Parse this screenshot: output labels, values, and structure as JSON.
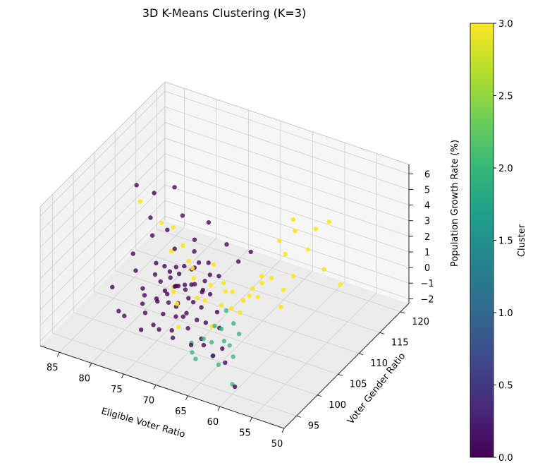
{
  "chart_data": {
    "type": "scatter",
    "projection": "3d",
    "title": "3D K-Means Clustering (K=3)",
    "xlabel": "Eligible Voter Ratio",
    "ylabel": "Voter Gender Ratio",
    "zlabel": "Population Growth Rate (%)",
    "xlim": [
      50,
      88
    ],
    "ylim": [
      92,
      122
    ],
    "zlim": [
      -2.3,
      6.6
    ],
    "xticks": [
      50,
      55,
      60,
      65,
      70,
      75,
      80,
      85
    ],
    "yticks": [
      95,
      100,
      105,
      110,
      115,
      120
    ],
    "zticks": [
      -2,
      -1,
      0,
      1,
      2,
      3,
      4,
      5,
      6
    ],
    "grid": true,
    "colormap": "viridis",
    "colorbar": {
      "label": "Cluster",
      "range": [
        0.0,
        3.0
      ],
      "ticks": [
        "0.0",
        "0.5",
        "1.0",
        "1.5",
        "2.0",
        "2.5",
        "3.0"
      ],
      "stops": [
        "#440154",
        "#482878",
        "#3e4989",
        "#31688e",
        "#26828e",
        "#1f9e89",
        "#35b779",
        "#6ece58",
        "#b5de2b",
        "#fde725"
      ]
    },
    "series": [
      {
        "cluster": 0,
        "color": "#440154",
        "points": [
          [
            73.0,
            104.5,
            -0.5
          ],
          [
            74.2,
            103.8,
            -0.8
          ],
          [
            75.6,
            105.2,
            -0.3
          ],
          [
            72.4,
            103.1,
            -1.0
          ],
          [
            76.8,
            104.7,
            -0.6
          ],
          [
            71.6,
            105.6,
            -0.2
          ],
          [
            74.8,
            106.4,
            -0.4
          ],
          [
            73.6,
            102.4,
            -1.2
          ],
          [
            77.4,
            103.6,
            -0.9
          ],
          [
            70.8,
            104.2,
            -0.7
          ],
          [
            75.2,
            101.8,
            -1.1
          ],
          [
            72.0,
            106.9,
            0.1
          ],
          [
            76.2,
            107.2,
            -0.1
          ],
          [
            74.4,
            108.1,
            0.3
          ],
          [
            78.2,
            105.8,
            -0.5
          ],
          [
            69.6,
            103.4,
            -1.3
          ],
          [
            71.2,
            101.6,
            -1.4
          ],
          [
            73.2,
            100.8,
            -1.6
          ],
          [
            75.8,
            100.4,
            -1.5
          ],
          [
            77.6,
            101.2,
            -1.2
          ],
          [
            79.0,
            103.2,
            -0.8
          ],
          [
            78.6,
            107.4,
            0.0
          ],
          [
            72.8,
            109.0,
            0.6
          ],
          [
            75.4,
            109.6,
            0.8
          ],
          [
            70.4,
            107.8,
            0.4
          ],
          [
            73.8,
            105.0,
            -0.2
          ],
          [
            74.6,
            104.0,
            0.2
          ],
          [
            72.6,
            104.6,
            0.4
          ],
          [
            76.4,
            105.4,
            0.1
          ],
          [
            71.8,
            103.8,
            -0.4
          ],
          [
            74.0,
            106.8,
            0.6
          ],
          [
            77.0,
            106.2,
            0.2
          ],
          [
            73.4,
            107.6,
            0.9
          ],
          [
            75.0,
            102.8,
            -0.6
          ],
          [
            70.2,
            105.4,
            -0.1
          ],
          [
            69.0,
            101.4,
            -1.7
          ],
          [
            80.2,
            104.6,
            -0.9
          ],
          [
            81.4,
            108.8,
            1.2
          ],
          [
            82.6,
            110.2,
            1.8
          ],
          [
            84.8,
            104.4,
            -1.4
          ],
          [
            82.0,
            101.6,
            -1.8
          ],
          [
            66.0,
            99.6,
            -1.9
          ],
          [
            63.6,
            98.8,
            -1.8
          ],
          [
            65.2,
            100.6,
            -1.6
          ],
          [
            67.6,
            99.8,
            -1.5
          ],
          [
            60.4,
            96.2,
            -2.2
          ],
          [
            78.4,
            111.4,
            2.2
          ],
          [
            80.8,
            113.2,
            3.2
          ],
          [
            83.6,
            112.6,
            2.6
          ],
          [
            79.6,
            109.6,
            1.6
          ],
          [
            76.0,
            110.6,
            1.2
          ],
          [
            86.2,
            112.4,
            2.8
          ],
          [
            68.0,
            108.8,
            1.4
          ],
          [
            66.6,
            109.6,
            2.0
          ],
          [
            71.0,
            110.6,
            1.6
          ],
          [
            74.2,
            111.2,
            2.4
          ],
          [
            77.8,
            108.6,
            0.9
          ],
          [
            79.4,
            106.6,
            0.3
          ],
          [
            72.2,
            102.0,
            -0.9
          ],
          [
            70.6,
            102.8,
            -1.1
          ],
          [
            68.6,
            104.6,
            -0.8
          ],
          [
            75.6,
            103.4,
            -0.3
          ],
          [
            73.0,
            106.0,
            0.0
          ],
          [
            76.6,
            102.6,
            -0.7
          ],
          [
            71.4,
            107.2,
            0.5
          ],
          [
            78.8,
            102.4,
            -1.1
          ],
          [
            74.8,
            100.2,
            -1.6
          ],
          [
            72.4,
            99.8,
            -1.7
          ],
          [
            77.2,
            99.6,
            -1.8
          ],
          [
            80.6,
            100.8,
            -1.7
          ],
          [
            69.8,
            100.2,
            -1.9
          ],
          [
            83.0,
            106.6,
            0.4
          ],
          [
            81.8,
            105.4,
            -0.2
          ],
          [
            67.2,
            103.0,
            -1.2
          ],
          [
            73.6,
            103.0,
            0.6
          ],
          [
            75.9,
            106.0,
            0.7
          ],
          [
            71.0,
            104.9,
            0.2
          ],
          [
            78.0,
            104.2,
            0.4
          ],
          [
            74.5,
            105.8,
            1.0
          ],
          [
            72.9,
            101.4,
            -0.2
          ]
        ]
      },
      {
        "cluster": 2,
        "color": "#35b779",
        "points": [
          [
            64.0,
            100.5,
            -1.2
          ],
          [
            65.5,
            101.5,
            -1.4
          ],
          [
            66.5,
            102.4,
            -1.0
          ],
          [
            63.0,
            99.8,
            -1.6
          ],
          [
            67.0,
            100.8,
            -1.5
          ],
          [
            65.0,
            103.0,
            -0.6
          ],
          [
            68.5,
            101.2,
            -1.6
          ],
          [
            66.0,
            99.5,
            -1.9
          ],
          [
            64.5,
            98.6,
            -2.0
          ],
          [
            67.8,
            102.8,
            -1.1
          ],
          [
            69.0,
            99.2,
            -2.0
          ],
          [
            63.5,
            102.0,
            -0.8
          ],
          [
            70.0,
            100.6,
            -1.9
          ],
          [
            66.8,
            104.0,
            -0.3
          ],
          [
            68.2,
            98.8,
            -2.2
          ],
          [
            61.0,
            96.5,
            -2.2
          ]
        ]
      },
      {
        "cluster": 3,
        "color": "#fde725",
        "points": [
          [
            52.0,
            108.6,
            2.2
          ],
          [
            53.5,
            107.0,
            3.4
          ],
          [
            55.5,
            106.2,
            4.6
          ],
          [
            54.8,
            110.2,
            5.4
          ],
          [
            56.6,
            109.8,
            4.8
          ],
          [
            57.0,
            105.0,
            3.0
          ],
          [
            58.8,
            108.2,
            4.8
          ],
          [
            58.0,
            104.2,
            2.2
          ],
          [
            59.4,
            106.8,
            3.6
          ],
          [
            60.8,
            105.6,
            2.2
          ],
          [
            61.6,
            103.6,
            1.4
          ],
          [
            62.4,
            105.8,
            1.6
          ],
          [
            63.2,
            104.8,
            1.4
          ],
          [
            64.0,
            103.8,
            0.8
          ],
          [
            64.8,
            102.2,
            0.6
          ],
          [
            66.4,
            103.2,
            1.2
          ],
          [
            66.0,
            101.6,
            0.8
          ],
          [
            63.0,
            101.4,
            0.8
          ],
          [
            62.0,
            102.2,
            1.8
          ],
          [
            65.2,
            103.0,
            1.4
          ],
          [
            67.6,
            104.6,
            1.2
          ],
          [
            69.2,
            104.0,
            1.0
          ],
          [
            70.4,
            102.6,
            0.4
          ],
          [
            71.6,
            103.6,
            1.2
          ],
          [
            72.6,
            104.8,
            1.4
          ],
          [
            74.2,
            106.4,
            1.2
          ],
          [
            74.8,
            103.6,
            0.2
          ],
          [
            71.0,
            99.0,
            -0.6
          ],
          [
            75.6,
            107.2,
            1.8
          ],
          [
            77.0,
            106.6,
            1.4
          ],
          [
            79.2,
            110.4,
            1.6
          ],
          [
            80.0,
            108.8,
            2.2
          ],
          [
            86.4,
            113.6,
            1.4
          ],
          [
            66.8,
            100.6,
            -0.4
          ],
          [
            68.8,
            102.0,
            0.6
          ],
          [
            60.2,
            106.6,
            4.4
          ],
          [
            72.8,
            101.4,
            0.0
          ],
          [
            69.8,
            105.6,
            1.8
          ],
          [
            61.4,
            104.2,
            2.6
          ],
          [
            59.6,
            109.0,
            5.2
          ],
          [
            57.8,
            103.2,
            1.4
          ],
          [
            73.8,
            102.2,
            0.4
          ]
        ]
      }
    ]
  }
}
